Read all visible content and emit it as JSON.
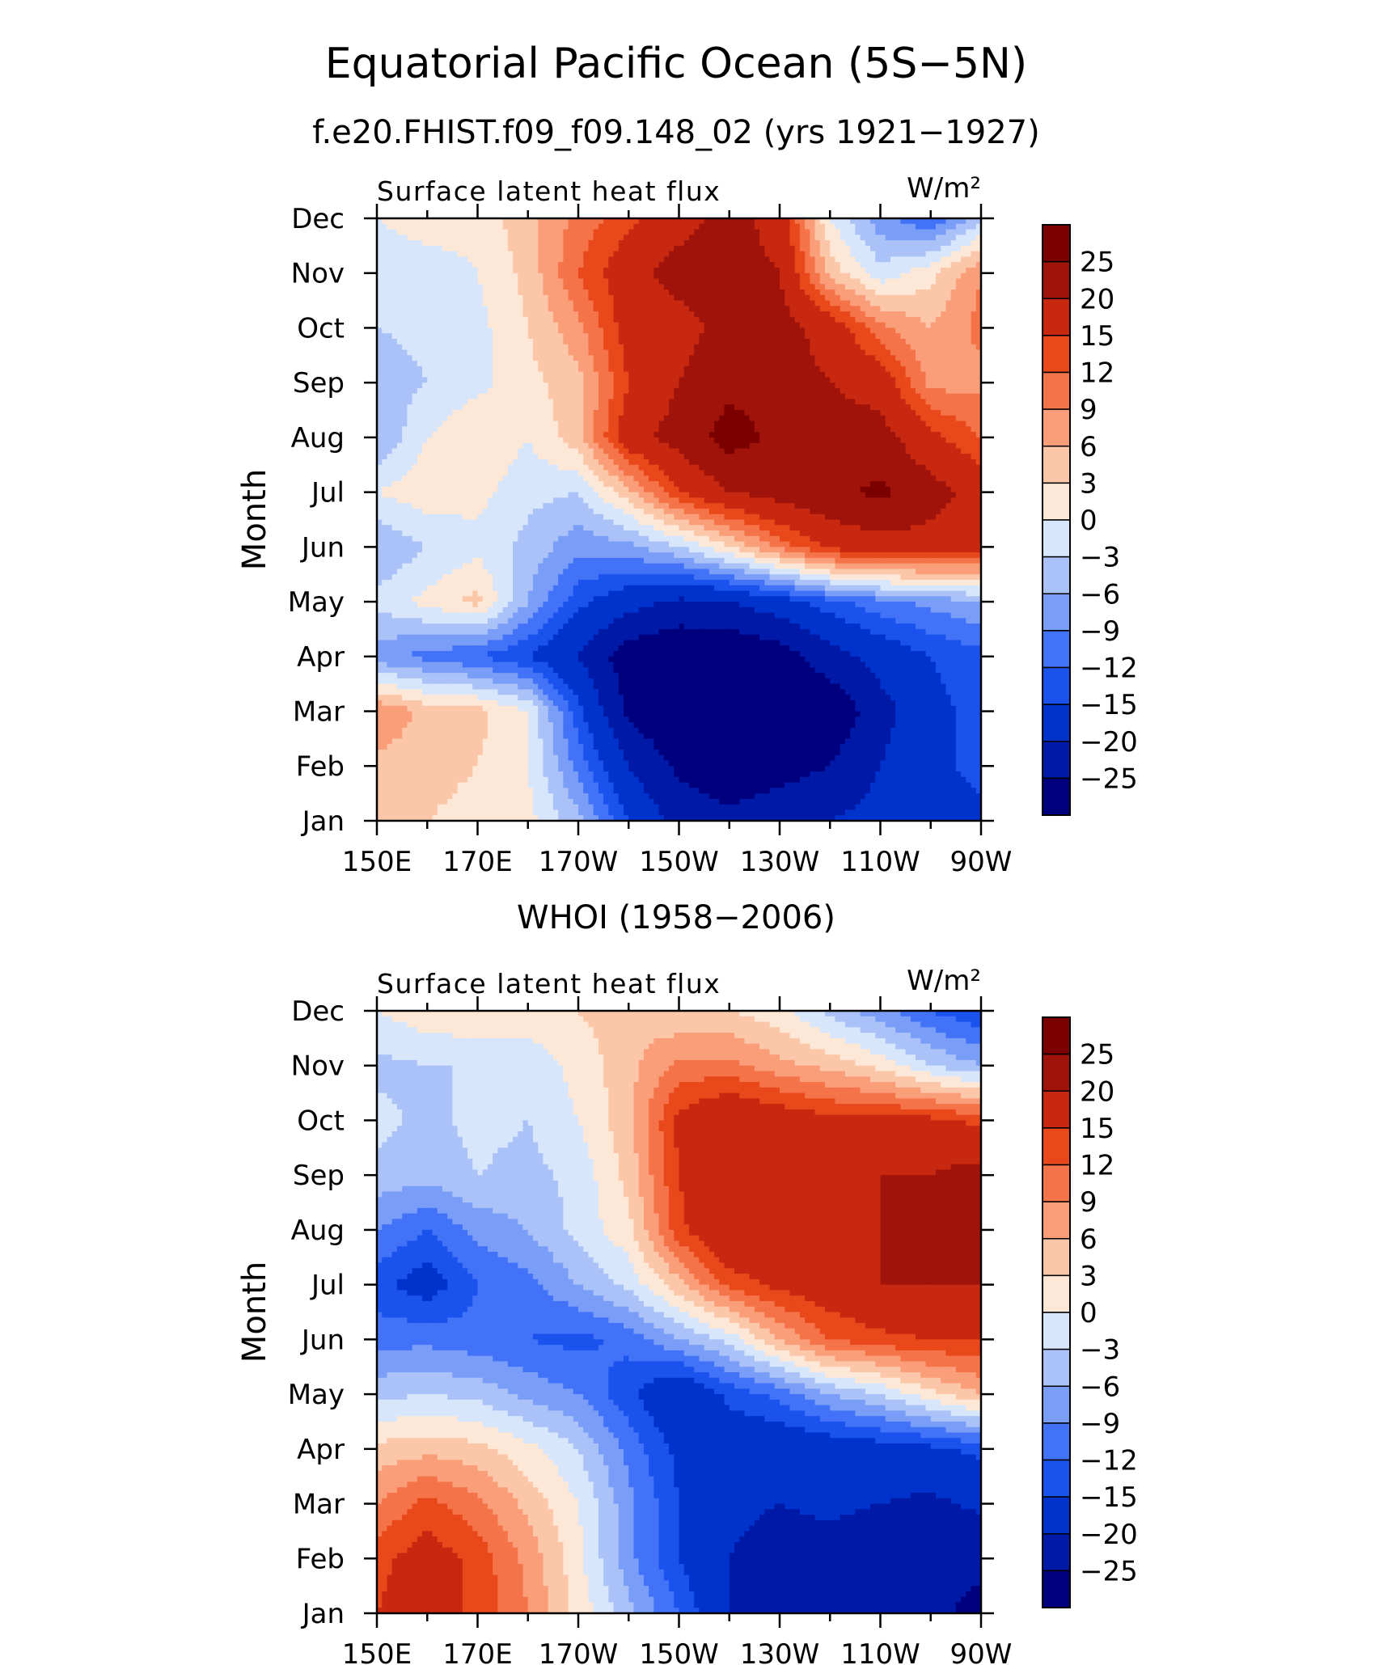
{
  "figure": {
    "title": "Equatorial Pacific Ocean (5S−5N)",
    "subtitle": "f.e20.FHIST.f09_f09.148_02 (yrs 1921−1927)"
  },
  "colorbar": {
    "levels": [
      -25,
      -20,
      -15,
      -12,
      -9,
      -6,
      -3,
      0,
      3,
      6,
      9,
      12,
      15,
      20,
      25
    ],
    "labels": [
      "25",
      "20",
      "15",
      "12",
      "9",
      "6",
      "3",
      "0",
      "−3",
      "−6",
      "−9",
      "−12",
      "−15",
      "−20",
      "−25"
    ],
    "colors": [
      "#00007f",
      "#0019a6",
      "#0033cc",
      "#1a52ee",
      "#4272f7",
      "#7a9ef7",
      "#aac2f7",
      "#d7e6fb",
      "#fde8d8",
      "#fcc6a8",
      "#fa9e7a",
      "#f57349",
      "#e8481a",
      "#c82810",
      "#a0130a",
      "#7b0000"
    ]
  },
  "chart_data": [
    {
      "type": "heatmap",
      "title": "f.e20.FHIST.f09_f09.148_02 (yrs 1921−1927)",
      "left_label": "Surface latent heat flux",
      "units": "W/m²",
      "ylabel": "Month",
      "x": [
        150,
        160,
        170,
        180,
        190,
        200,
        210,
        220,
        230,
        240,
        250,
        260,
        270
      ],
      "x_tick_labels": [
        "150E",
        "170E",
        "170W",
        "150W",
        "130W",
        "110W",
        "90W"
      ],
      "x_ticks": [
        150,
        170,
        190,
        210,
        230,
        250,
        270
      ],
      "xlim": [
        150,
        270
      ],
      "y": [
        "Jan",
        "Feb",
        "Mar",
        "Apr",
        "May",
        "Jun",
        "Jul",
        "Aug",
        "Sep",
        "Oct",
        "Nov",
        "Dec"
      ],
      "z": [
        [
          4,
          3,
          2,
          1,
          -5,
          -15,
          -22,
          -24,
          -22,
          -20,
          -18,
          -18,
          -16
        ],
        [
          5,
          4,
          3,
          0,
          -10,
          -20,
          -26,
          -28,
          -27,
          -25,
          -20,
          -16,
          -14
        ],
        [
          9,
          5,
          4,
          0,
          -14,
          -26,
          -30,
          -31,
          -30,
          -29,
          -22,
          -16,
          -14
        ],
        [
          -8,
          -10,
          -12,
          -15,
          -20,
          -28,
          -30,
          -30,
          -28,
          -22,
          -18,
          -15,
          -13
        ],
        [
          -2,
          1,
          4,
          -6,
          -14,
          -18,
          -21,
          -20,
          -17,
          -13,
          -10,
          -8,
          -6
        ],
        [
          -6,
          -3,
          -1,
          -4,
          -8,
          -7,
          -3,
          3,
          10,
          16,
          18,
          18,
          17
        ],
        [
          0,
          2,
          1,
          -2,
          -3,
          5,
          15,
          20,
          22,
          24,
          26,
          22,
          18
        ],
        [
          -6,
          0,
          3,
          0,
          5,
          18,
          22,
          27,
          24,
          22,
          22,
          16,
          12
        ],
        [
          -5,
          -3,
          -1,
          2,
          5,
          15,
          20,
          24,
          22,
          20,
          18,
          8,
          8
        ],
        [
          -3,
          -2,
          -1,
          3,
          8,
          17,
          18,
          22,
          22,
          18,
          10,
          6,
          10
        ],
        [
          -3,
          -2,
          0,
          4,
          12,
          18,
          22,
          22,
          20,
          5,
          -2,
          2,
          9
        ],
        [
          0,
          2,
          1,
          5,
          10,
          14,
          18,
          22,
          18,
          0,
          -8,
          -12,
          -4
        ]
      ]
    },
    {
      "type": "heatmap",
      "title": "WHOI (1958−2006)",
      "left_label": "Surface latent heat flux",
      "units": "W/m²",
      "ylabel": "Month",
      "x": [
        150,
        160,
        170,
        180,
        190,
        200,
        210,
        220,
        230,
        240,
        250,
        260,
        270
      ],
      "x_tick_labels": [
        "150E",
        "170E",
        "170W",
        "150W",
        "130W",
        "110W",
        "90W"
      ],
      "x_ticks": [
        150,
        170,
        190,
        210,
        230,
        250,
        270
      ],
      "xlim": [
        150,
        270
      ],
      "y": [
        "Jan",
        "Feb",
        "Mar",
        "Apr",
        "May",
        "Jun",
        "Jul",
        "Aug",
        "Sep",
        "Oct",
        "Nov",
        "Dec"
      ],
      "z": [
        [
          15,
          17,
          14,
          9,
          2,
          -5,
          -12,
          -20,
          -21,
          -20,
          -22,
          -24,
          -26
        ],
        [
          14,
          17,
          14,
          8,
          1,
          -8,
          -15,
          -20,
          -22,
          -22,
          -24,
          -25,
          -24
        ],
        [
          9,
          13,
          10,
          5,
          0,
          -8,
          -15,
          -19,
          -20,
          -19,
          -20,
          -21,
          -19
        ],
        [
          4,
          5,
          4,
          1,
          -3,
          -10,
          -16,
          -18,
          -19,
          -18,
          -17,
          -16,
          -14
        ],
        [
          -4,
          -3,
          -4,
          -7,
          -9,
          -14,
          -20,
          -14,
          -11,
          -6,
          -3,
          2,
          6
        ],
        [
          -10,
          -10,
          -11,
          -12,
          -13,
          -11,
          -6,
          -2,
          6,
          12,
          14,
          15,
          15
        ],
        [
          -14,
          -17,
          -12,
          -10,
          -6,
          -2,
          5,
          13,
          16,
          18,
          20,
          20,
          20
        ],
        [
          -9,
          -12,
          -8,
          -6,
          -2,
          2,
          14,
          20,
          18,
          16,
          20,
          20,
          20
        ],
        [
          -4,
          -5,
          -3,
          -4,
          -2,
          4,
          15,
          20,
          17,
          16,
          20,
          20,
          22
        ],
        [
          -2,
          -4,
          -2,
          -3,
          0,
          5,
          16,
          20,
          18,
          16,
          16,
          16,
          14
        ],
        [
          -4,
          -3,
          -3,
          -2,
          1,
          5,
          10,
          10,
          7,
          5,
          2,
          -3,
          -6
        ],
        [
          0,
          2,
          3,
          2,
          3,
          5,
          3,
          3,
          1,
          -4,
          -8,
          -12,
          -15
        ]
      ]
    }
  ]
}
